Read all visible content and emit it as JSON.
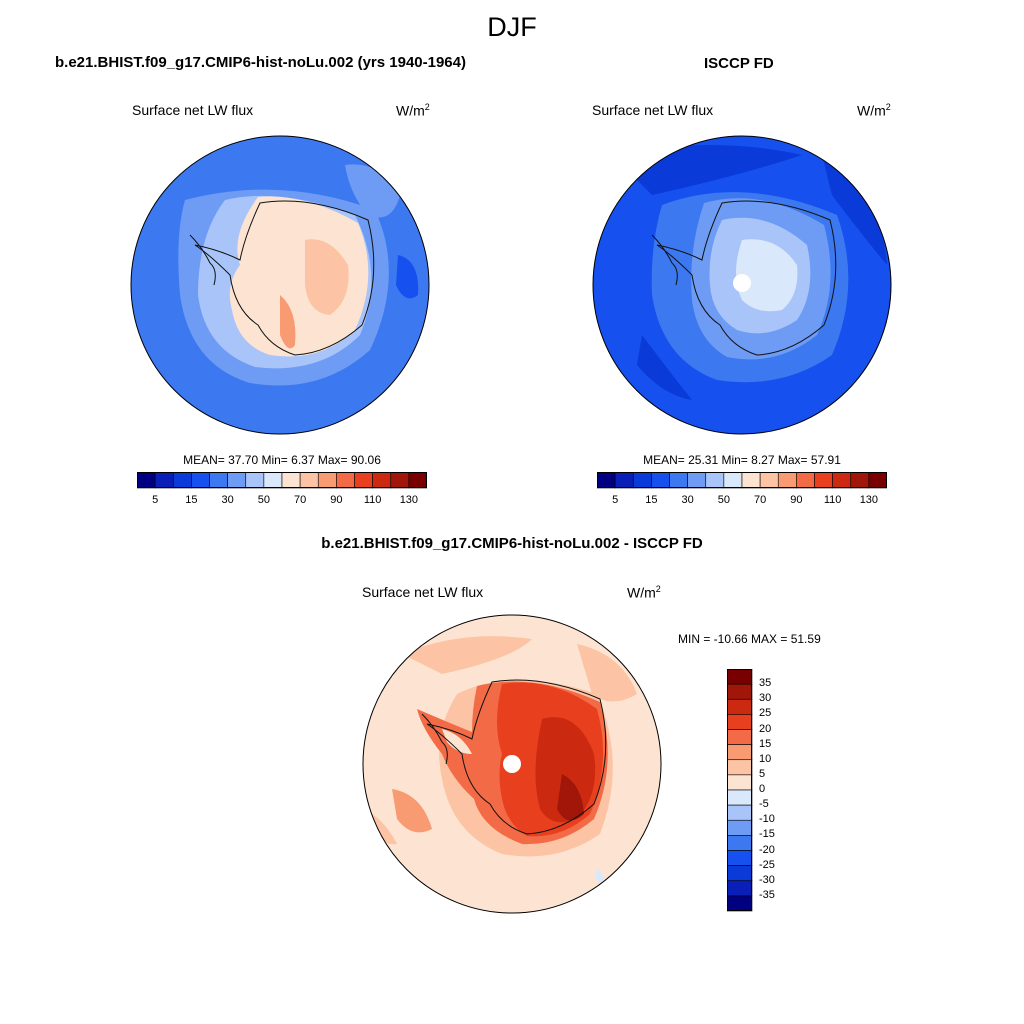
{
  "season": "DJF",
  "colors": {
    "ramp": [
      "#000080",
      "#0a1fb8",
      "#0a3ad8",
      "#1650ee",
      "#3c78f0",
      "#6e9cf4",
      "#a8c4f8",
      "#dae8fc",
      "#fde4d2",
      "#fcc4a4",
      "#f89a72",
      "#f26b46",
      "#e8401e",
      "#cc2a10",
      "#a01608",
      "#780000"
    ],
    "diff_ramp": [
      "#000080",
      "#0a1fb8",
      "#0a3ad8",
      "#1650ee",
      "#3c78f0",
      "#6e9cf4",
      "#a8c4f8",
      "#dae8fc",
      "#fde4d2",
      "#fcc4a4",
      "#f89a72",
      "#f26b46",
      "#e8401e",
      "#cc2a10",
      "#a01608",
      "#780000"
    ],
    "coast": "#111111"
  },
  "panels": {
    "left": {
      "title": "b.e21.BHIST.f09_g17.CMIP6-hist-noLu.002 (yrs 1940-1964)",
      "field": "Surface net LW flux",
      "units": "W/m",
      "units_sup": "2",
      "stats": "MEAN=  37.70  Min=   6.37  Max=  90.06",
      "colorbar_ticks": [
        "5",
        "15",
        "30",
        "50",
        "70",
        "90",
        "110",
        "130"
      ]
    },
    "right": {
      "title": "ISCCP FD",
      "field": "Surface net LW flux",
      "units": "W/m",
      "units_sup": "2",
      "stats": "MEAN=  25.31  Min=   8.27  Max=  57.91",
      "colorbar_ticks": [
        "5",
        "15",
        "30",
        "50",
        "70",
        "90",
        "110",
        "130"
      ]
    },
    "diff": {
      "title": "b.e21.BHIST.f09_g17.CMIP6-hist-noLu.002 - ISCCP FD",
      "field": "Surface net LW flux",
      "units": "W/m",
      "units_sup": "2",
      "stats": "MIN = -10.66 MAX =  51.59",
      "colorbar_ticks": [
        "35",
        "30",
        "25",
        "20",
        "15",
        "10",
        "5",
        "0",
        "-5",
        "-10",
        "-15",
        "-20",
        "-25",
        "-30",
        "-35"
      ]
    }
  }
}
